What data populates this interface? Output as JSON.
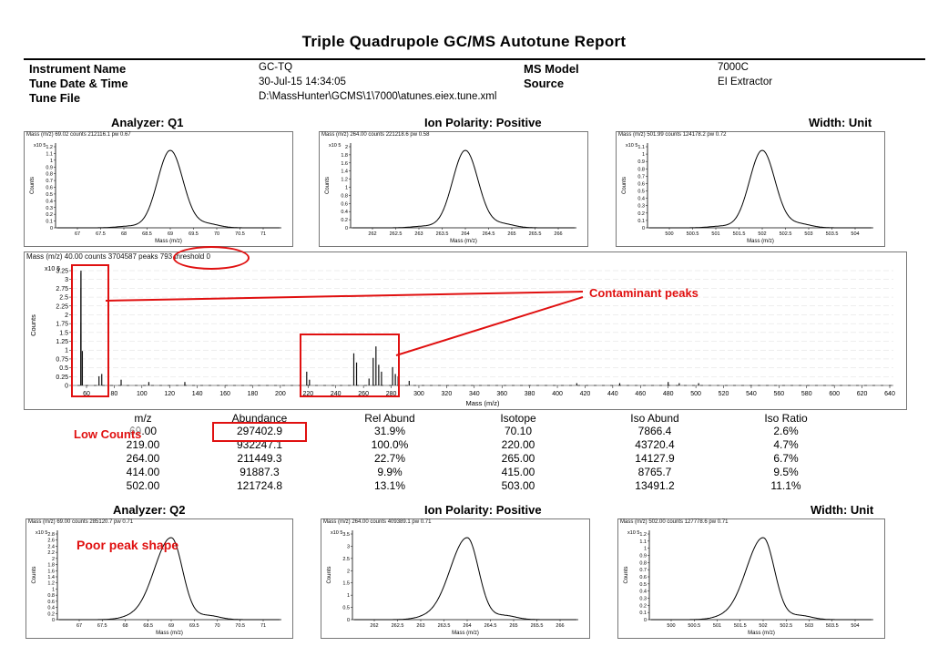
{
  "report": {
    "title": "Triple Quadrupole GC/MS Autotune Report",
    "instrument_name_label": "Instrument Name",
    "instrument_name": "GC-TQ",
    "tune_date_label": "Tune Date & Time",
    "tune_date": "30-Jul-15 14:34:05",
    "tune_file_label": "Tune File",
    "tune_file": "D:\\MassHunter\\GCMS\\1\\7000\\atunes.eiex.tune.xml",
    "ms_model_label": "MS Model",
    "ms_model": "7000C",
    "source_label": "Source",
    "source": "EI Extractor"
  },
  "q1": {
    "analyzer": "Analyzer: Q1",
    "polarity": "Ion Polarity: Positive",
    "width": "Width: Unit",
    "plots": [
      {
        "header": "Mass (m/z) 69.02 counts 212116.1 pw 0.67",
        "xlabel": "Mass (m/z)",
        "ylabel": "Counts",
        "exp": "x10 5",
        "yticks": [
          "1.2",
          "1.1",
          "1",
          "0.9",
          "0.8",
          "0.7",
          "0.6",
          "0.5",
          "0.4",
          "0.3",
          "0.2",
          "0.1",
          "0"
        ],
        "xticks": [
          "67",
          "67.5",
          "68",
          "68.5",
          "69",
          "69.5",
          "70",
          "70.5",
          "71"
        ]
      },
      {
        "header": "Mass (m/z) 264.00 counts 221218.6 pw 0.58",
        "xlabel": "Mass (m/z)",
        "ylabel": "Counts",
        "exp": "x10 5",
        "yticks": [
          "2",
          "1.8",
          "1.6",
          "1.4",
          "1.2",
          "1",
          "0.8",
          "0.6",
          "0.4",
          "0.2",
          "0"
        ],
        "xticks": [
          "262",
          "262.5",
          "263",
          "263.5",
          "264",
          "264.5",
          "265",
          "265.5",
          "266"
        ]
      },
      {
        "header": "Mass (m/z) 501.99 counts 124178.2 pw 0.72",
        "xlabel": "Mass (m/z)",
        "ylabel": "Counts",
        "exp": "x10 5",
        "yticks": [
          "1.1",
          "1",
          "0.9",
          "0.8",
          "0.7",
          "0.6",
          "0.5",
          "0.4",
          "0.3",
          "0.2",
          "0.1",
          "0"
        ],
        "xticks": [
          "500",
          "500.5",
          "501",
          "501.5",
          "502",
          "502.5",
          "503",
          "503.5",
          "504"
        ]
      }
    ]
  },
  "scan": {
    "header": "Mass (m/z) 40.00 counts 3704587 peaks 793 threshold 0",
    "exp": "x10 5",
    "ylabel": "Counts",
    "xlabel": "Mass (m/z)",
    "yticks": [
      "3.25",
      "3",
      "2.75",
      "2.5",
      "2.25",
      "2",
      "1.75",
      "1.5",
      "1.25",
      "1",
      "0.75",
      "0.5",
      "0.25",
      "0"
    ],
    "xticks": [
      "60",
      "80",
      "100",
      "120",
      "140",
      "160",
      "180",
      "200",
      "220",
      "240",
      "260",
      "280",
      "300",
      "320",
      "340",
      "360",
      "380",
      "400",
      "420",
      "440",
      "460",
      "480",
      "500",
      "520",
      "540",
      "560",
      "580",
      "600",
      "620",
      "640"
    ]
  },
  "annotations": {
    "contaminant": "Contaminant peaks",
    "low_counts": "Low Counts",
    "poor_shape": "Poor peak shape"
  },
  "table": {
    "headers": [
      "m/z",
      "Abundance",
      "Rel  Abund",
      "Isotope",
      "Iso Abund",
      "Iso Ratio"
    ],
    "rows": [
      [
        "69.00",
        "297402.9",
        "31.9%",
        "70.10",
        "7866.4",
        "2.6%"
      ],
      [
        "219.00",
        "932247.1",
        "100.0%",
        "220.00",
        "43720.4",
        "4.7%"
      ],
      [
        "264.00",
        "211449.3",
        "22.7%",
        "265.00",
        "14127.9",
        "6.7%"
      ],
      [
        "414.00",
        "91887.3",
        "9.9%",
        "415.00",
        "8765.7",
        "9.5%"
      ],
      [
        "502.00",
        "121724.8",
        "13.1%",
        "503.00",
        "13491.2",
        "11.1%"
      ]
    ]
  },
  "q2": {
    "analyzer": "Analyzer: Q2",
    "polarity": "Ion Polarity: Positive",
    "width": "Width: Unit",
    "plots": [
      {
        "header": "Mass (m/z) 69.00 counts 285120.7 pw 0.71",
        "xlabel": "Mass (m/z)",
        "ylabel": "Counts",
        "exp": "x10 5",
        "yticks": [
          "2.8",
          "2.6",
          "2.4",
          "2.2",
          "2",
          "1.8",
          "1.6",
          "1.4",
          "1.2",
          "1",
          "0.8",
          "0.6",
          "0.4",
          "0.2",
          "0"
        ],
        "xticks": [
          "67",
          "67.5",
          "68",
          "68.5",
          "69",
          "69.5",
          "70",
          "70.5",
          "71"
        ]
      },
      {
        "header": "Mass (m/z) 264.00 counts 409389.1 pw 0.71",
        "xlabel": "Mass (m/z)",
        "ylabel": "Counts",
        "exp": "x10 5",
        "yticks": [
          "3.5",
          "3",
          "2.5",
          "2",
          "1.5",
          "1",
          "0.5",
          "0"
        ],
        "xticks": [
          "262",
          "262.5",
          "263",
          "263.5",
          "264",
          "264.5",
          "265",
          "265.5",
          "266"
        ]
      },
      {
        "header": "Mass (m/z) 502.00 counts 127778.6 pw 0.71",
        "xlabel": "Mass (m/z)",
        "ylabel": "Counts",
        "exp": "x10 5",
        "yticks": [
          "1.2",
          "1.1",
          "1",
          "0.9",
          "0.8",
          "0.7",
          "0.6",
          "0.5",
          "0.4",
          "0.3",
          "0.2",
          "0.1",
          "0"
        ],
        "xticks": [
          "500",
          "500.5",
          "501",
          "501.5",
          "502",
          "502.5",
          "503",
          "503.5",
          "504"
        ]
      }
    ]
  }
}
